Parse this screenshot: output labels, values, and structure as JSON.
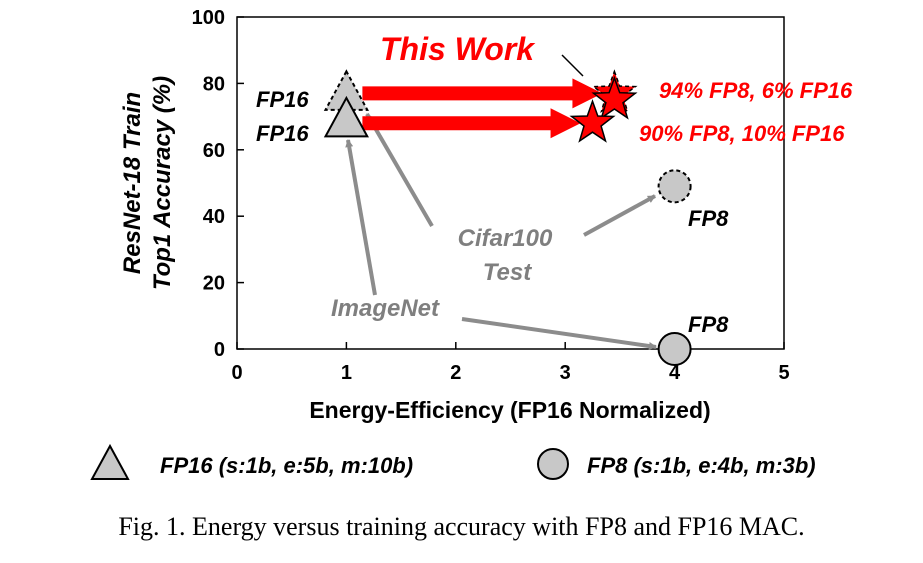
{
  "chart_data": {
    "type": "scatter",
    "xlabel": "Energy-Efficiency (FP16 Normalized)",
    "ylabel_lines": [
      "ResNet-18 Train",
      "Top1 Accuracy (%)"
    ],
    "xlim": [
      0,
      5
    ],
    "ylim": [
      0,
      100
    ],
    "xticks": [
      0,
      1,
      2,
      3,
      4,
      5
    ],
    "yticks": [
      0,
      20,
      40,
      60,
      80,
      100
    ],
    "grid": false,
    "points": [
      {
        "marker": "triangle",
        "dataset": "Cifar100 Test",
        "style": "dashed",
        "x": 1.0,
        "y": 77,
        "label": "FP16"
      },
      {
        "marker": "triangle",
        "dataset": "ImageNet",
        "style": "solid",
        "x": 1.0,
        "y": 69,
        "label": "FP16"
      },
      {
        "marker": "circle",
        "dataset": "Cifar100 Test",
        "style": "dashed",
        "x": 4.0,
        "y": 49,
        "label": "FP8"
      },
      {
        "marker": "circle",
        "dataset": "ImageNet",
        "style": "solid",
        "x": 4.0,
        "y": 0,
        "label": "FP8"
      },
      {
        "marker": "star",
        "dataset": "Cifar100 Test",
        "style": "dashed",
        "x": 3.45,
        "y": 77,
        "label": ""
      },
      {
        "marker": "star",
        "dataset": "Cifar100 Test",
        "style": "solid",
        "x": 3.45,
        "y": 75,
        "label": ""
      },
      {
        "marker": "star",
        "dataset": "ImageNet",
        "style": "solid",
        "x": 3.25,
        "y": 68,
        "label": ""
      }
    ],
    "arrows": [
      {
        "from": [
          1.0,
          77
        ],
        "to": [
          3.45,
          77
        ],
        "color": "#ff0000"
      },
      {
        "from": [
          1.0,
          68
        ],
        "to": [
          3.25,
          68
        ],
        "color": "#ff0000"
      }
    ],
    "annotations": {
      "this_work": "This Work",
      "star_top_label": "94% FP8, 6% FP16",
      "star_bottom_label": "90% FP8, 10% FP16",
      "cifar_line1": "Cifar100",
      "cifar_line2": "Test",
      "imagenet": "ImageNet"
    },
    "legend": [
      {
        "marker": "triangle",
        "label": "FP16 (s:1b, e:5b, m:10b)"
      },
      {
        "marker": "circle",
        "label": "FP8 (s:1b, e:4b, m:3b)"
      }
    ],
    "legend_position": "bottom"
  },
  "caption": "Fig. 1.   Energy versus training accuracy with FP8 and FP16 MAC.",
  "colors": {
    "red": "#ff0000",
    "gray_fill": "#c8c8c8",
    "gray_arrow": "#8c8c8c",
    "gray_text": "#7f7f7f",
    "black": "#000000"
  }
}
